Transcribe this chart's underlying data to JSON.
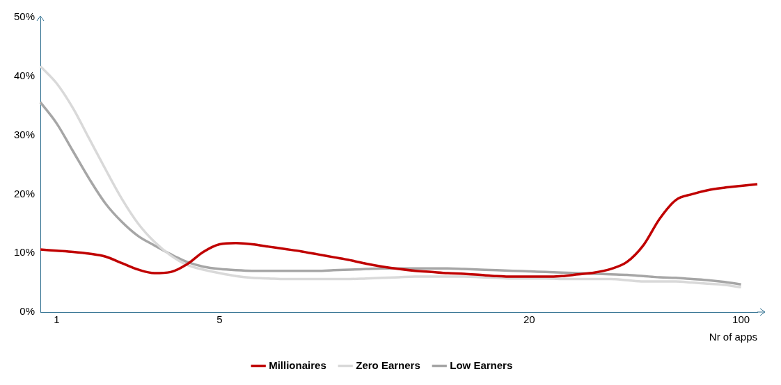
{
  "chart_data": {
    "type": "line",
    "xlabel": "Nr of apps",
    "categories": [
      null,
      "1",
      null,
      null,
      null,
      null,
      null,
      null,
      null,
      null,
      null,
      "5",
      null,
      null,
      null,
      null,
      null,
      null,
      null,
      null,
      null,
      null,
      null,
      null,
      null,
      null,
      null,
      null,
      null,
      null,
      "20",
      null,
      null,
      null,
      null,
      null,
      null,
      null,
      null,
      null,
      null,
      null,
      null,
      "100",
      null
    ],
    "series": [
      {
        "name": "Millionaires",
        "color": "#c00000",
        "values": [
          10.6,
          10.4,
          10.2,
          9.9,
          9.4,
          8.3,
          7.2,
          6.6,
          6.8,
          8.1,
          10.2,
          11.5,
          11.7,
          11.5,
          11.1,
          10.7,
          10.3,
          9.8,
          9.3,
          8.8,
          8.2,
          7.7,
          7.3,
          7.0,
          6.8,
          6.6,
          6.5,
          6.3,
          6.1,
          6.0,
          6.0,
          6.0,
          6.1,
          6.4,
          6.7,
          7.3,
          8.5,
          11.3,
          15.8,
          19.0,
          20.0,
          20.7,
          21.1,
          21.4,
          21.7
        ]
      },
      {
        "name": "Zero Earners",
        "color": "#d9d9d9",
        "values": [
          41.7,
          38.8,
          34.6,
          29.4,
          24.2,
          19.2,
          15.0,
          11.9,
          9.6,
          8.0,
          7.2,
          6.6,
          6.1,
          5.8,
          5.7,
          5.6,
          5.6,
          5.6,
          5.6,
          5.6,
          5.7,
          5.8,
          5.9,
          6.0,
          6.0,
          6.0,
          6.0,
          5.9,
          5.8,
          5.7,
          5.7,
          5.7,
          5.6,
          5.6,
          5.6,
          5.6,
          5.4,
          5.2,
          5.2,
          5.2,
          5.0,
          4.8,
          4.6,
          4.2,
          null
        ]
      },
      {
        "name": "Low Earners",
        "color": "#a6a6a6",
        "values": [
          35.6,
          32.0,
          27.3,
          22.6,
          18.4,
          15.3,
          12.9,
          11.3,
          9.8,
          8.5,
          7.7,
          7.3,
          7.1,
          7.0,
          7.0,
          7.0,
          7.0,
          7.0,
          7.1,
          7.2,
          7.3,
          7.4,
          7.4,
          7.4,
          7.4,
          7.4,
          7.3,
          7.2,
          7.1,
          7.0,
          6.9,
          6.8,
          6.7,
          6.6,
          6.5,
          6.4,
          6.3,
          6.1,
          5.9,
          5.8,
          5.6,
          5.4,
          5.1,
          4.7,
          null
        ]
      }
    ],
    "ylim": [
      0,
      50
    ],
    "yticks": [
      {
        "value": 0,
        "label": "0%"
      },
      {
        "value": 10,
        "label": "10%"
      },
      {
        "value": 20,
        "label": "20%"
      },
      {
        "value": 30,
        "label": "30%"
      },
      {
        "value": 40,
        "label": "40%"
      },
      {
        "value": 50,
        "label": "50%"
      }
    ],
    "grid": false,
    "legend": "bottom",
    "marker": "none",
    "line_style": "solid"
  }
}
